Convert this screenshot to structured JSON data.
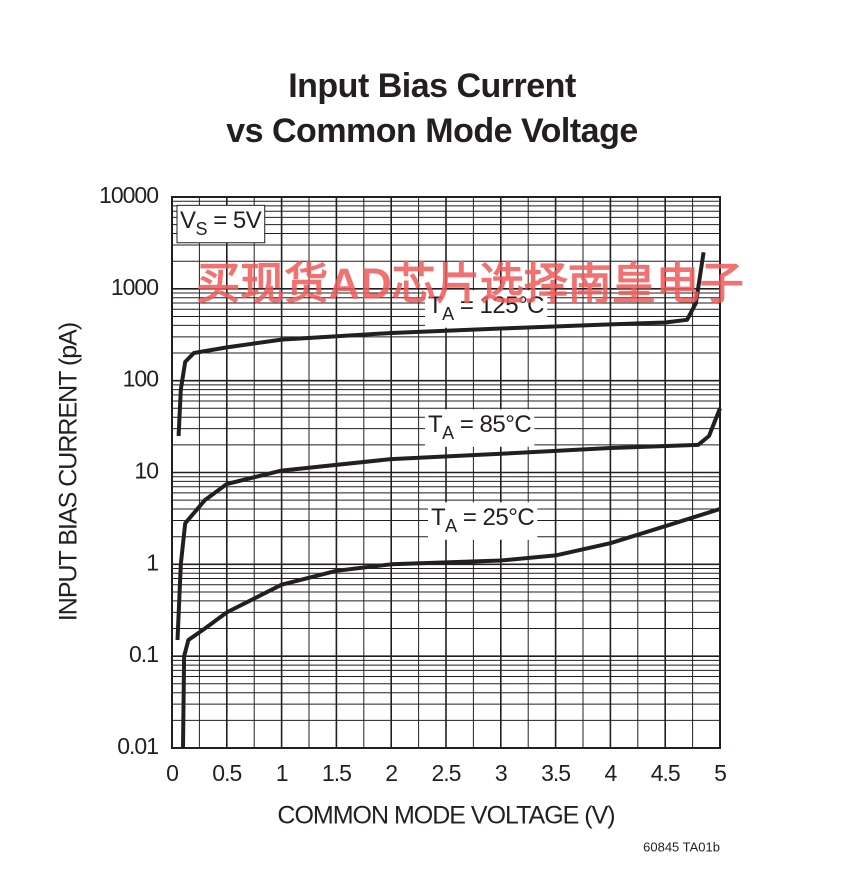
{
  "chart_data": {
    "type": "line",
    "title": [
      "Input Bias Current",
      "vs Common Mode Voltage"
    ],
    "xlabel": "COMMON MODE VOLTAGE (V)",
    "ylabel": "INPUT BIAS CURRENT (pA)",
    "footnote": "60845 TA01b",
    "watermark": "买现货AD芯片选择南皇电子",
    "log_y": true,
    "grid": true,
    "xlim": [
      0,
      5
    ],
    "xticks": [
      0,
      0.5,
      1,
      1.5,
      2,
      2.5,
      3,
      3.5,
      4,
      4.5,
      5
    ],
    "ylim": [
      0.01,
      10000
    ],
    "yticks": [
      0.01,
      0.1,
      1,
      10,
      100,
      1000,
      10000
    ],
    "annotations": [
      {
        "main": "V",
        "sub": "S",
        "tail": " = 5V"
      },
      {
        "main": "T",
        "sub": "A",
        "tail": " = 125°C"
      },
      {
        "main": "T",
        "sub": "A",
        "tail": " = 85°C"
      },
      {
        "main": "T",
        "sub": "A",
        "tail": " = 25°C"
      }
    ],
    "series": [
      {
        "color": "#231f20",
        "x": [
          0.06,
          0.08,
          0.12,
          0.2,
          0.5,
          1,
          2,
          3,
          4,
          4.5,
          4.7,
          4.78,
          4.85
        ],
        "values": [
          25,
          80,
          160,
          200,
          230,
          280,
          330,
          370,
          410,
          430,
          460,
          700,
          2500
        ]
      },
      {
        "color": "#231f20",
        "x": [
          0.05,
          0.08,
          0.12,
          0.3,
          0.5,
          1,
          2,
          3,
          4,
          4.8,
          4.9,
          5
        ],
        "values": [
          0.15,
          1,
          2.8,
          5,
          7.5,
          10.5,
          14,
          16,
          18.5,
          20,
          25,
          50
        ]
      },
      {
        "color": "#231f20",
        "x": [
          0.1,
          0.11,
          0.15,
          0.3,
          0.5,
          1,
          1.5,
          2,
          3,
          3.5,
          4,
          4.5,
          5
        ],
        "values": [
          0.01,
          0.1,
          0.15,
          0.2,
          0.3,
          0.6,
          0.85,
          1.0,
          1.1,
          1.25,
          1.7,
          2.6,
          4
        ]
      }
    ]
  }
}
